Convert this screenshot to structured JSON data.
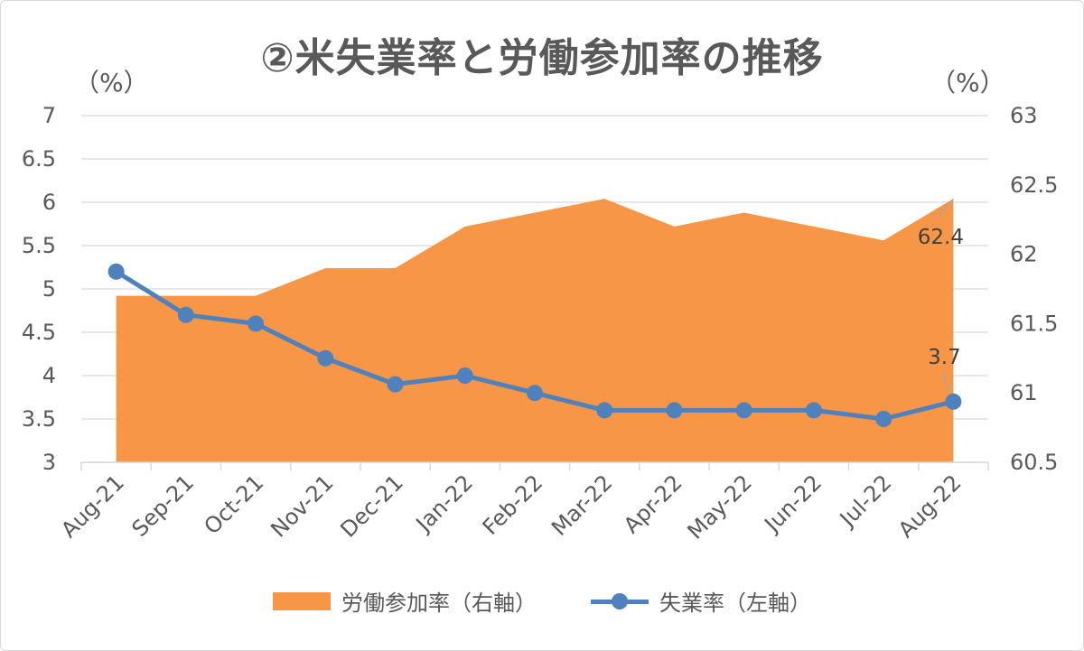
{
  "chart_data": {
    "type": "line+area",
    "title": "②米失業率と労働参加率の推移",
    "y_left": {
      "unit_label": "（%）",
      "ylim": [
        3,
        7
      ],
      "ticks": [
        "3",
        "3.5",
        "4",
        "4.5",
        "5",
        "5.5",
        "6",
        "6.5",
        "7"
      ]
    },
    "y_right": {
      "unit_label": "（%）",
      "ylim": [
        60.5,
        63
      ],
      "ticks": [
        "60.5",
        "61",
        "61.5",
        "62",
        "62.5",
        "63"
      ]
    },
    "categories": [
      "Aug-21",
      "Sep-21",
      "Oct-21",
      "Nov-21",
      "Dec-21",
      "Jan-22",
      "Feb-22",
      "Mar-22",
      "Apr-22",
      "May-22",
      "Jun-22",
      "Jul-22",
      "Aug-22"
    ],
    "series": [
      {
        "name": "労働参加率（右軸）",
        "type": "area",
        "axis": "right",
        "color": "#F79646",
        "values": [
          61.7,
          61.7,
          61.7,
          61.9,
          61.9,
          62.2,
          62.3,
          62.4,
          62.2,
          62.3,
          62.2,
          62.1,
          62.4
        ],
        "end_label": "62.4"
      },
      {
        "name": "失業率（左軸）",
        "type": "line",
        "axis": "left",
        "color": "#4F81BD",
        "values": [
          5.2,
          4.7,
          4.6,
          4.2,
          3.9,
          4.0,
          3.8,
          3.6,
          3.6,
          3.6,
          3.6,
          3.5,
          3.7
        ],
        "end_label": "3.7"
      }
    ],
    "grid": true,
    "legend_position": "bottom"
  }
}
